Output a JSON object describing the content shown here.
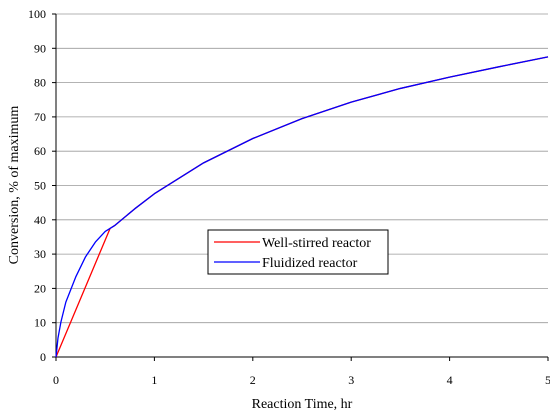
{
  "chart_data": {
    "type": "line",
    "title": "",
    "xlabel": "Reaction Time, hr",
    "ylabel": "Conversion, % of maximum",
    "xlim": [
      0,
      5
    ],
    "ylim": [
      0,
      100
    ],
    "x_ticks": [
      "0",
      "1",
      "2",
      "3",
      "4",
      "5"
    ],
    "y_ticks": [
      "0",
      "10",
      "20",
      "30",
      "40",
      "50",
      "60",
      "70",
      "80",
      "90",
      "100"
    ],
    "grid": "horizontal",
    "legend_position": "center",
    "series": [
      {
        "name": "Well-stirred reactor",
        "color": "#ff0000",
        "points": [
          [
            0,
            0
          ],
          [
            0.55,
            37.5
          ],
          [
            0.6,
            38.4
          ],
          [
            0.8,
            43.2
          ],
          [
            1.0,
            47.6
          ],
          [
            1.5,
            56.6
          ],
          [
            2.0,
            63.7
          ],
          [
            2.5,
            69.5
          ],
          [
            3.0,
            74.3
          ],
          [
            3.5,
            78.3
          ],
          [
            4.0,
            81.6
          ],
          [
            4.5,
            84.6
          ],
          [
            5.0,
            87.5
          ]
        ]
      },
      {
        "name": "Fluidized reactor",
        "color": "#0000ff",
        "points": [
          [
            0,
            0
          ],
          [
            0.02,
            5.5
          ],
          [
            0.05,
            10.2
          ],
          [
            0.1,
            16.0
          ],
          [
            0.2,
            23.3
          ],
          [
            0.3,
            29.2
          ],
          [
            0.4,
            33.5
          ],
          [
            0.5,
            36.6
          ],
          [
            0.6,
            38.4
          ],
          [
            0.8,
            43.2
          ],
          [
            1.0,
            47.6
          ],
          [
            1.5,
            56.6
          ],
          [
            2.0,
            63.7
          ],
          [
            2.5,
            69.5
          ],
          [
            3.0,
            74.3
          ],
          [
            3.5,
            78.3
          ],
          [
            4.0,
            81.6
          ],
          [
            4.5,
            84.6
          ],
          [
            5.0,
            87.5
          ]
        ]
      }
    ]
  }
}
